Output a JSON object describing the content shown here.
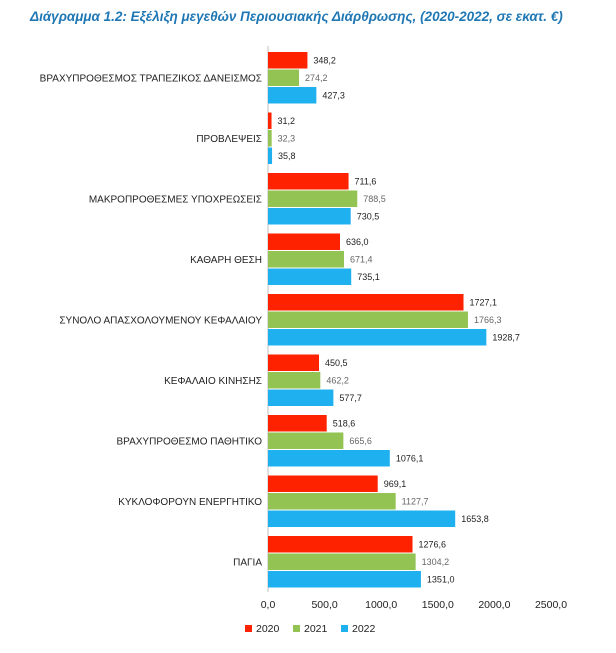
{
  "chart_data": {
    "type": "bar",
    "orientation": "horizontal",
    "title": "Διάγραμμα 1.2: Εξέλιξη μεγεθών Περιουσιακής Διάρθρωσης, (2020-2022, σε εκατ. €)",
    "categories": [
      "ΒΡΑΧΥΠΡΟΘΕΣΜΟΣ ΤΡΑΠΕΖΙΚΟΣ ΔΑΝΕΙΣΜΟΣ",
      "ΠΡΟΒΛΕΨΕΙΣ",
      "ΜΑΚΡΟΠΡΟΘΕΣΜΕΣ ΥΠΟΧΡΕΩΣΕΙΣ",
      "ΚΑΘΑΡΗ ΘΕΣΗ",
      "ΣΥΝΟΛΟ ΑΠΑΣΧΟΛΟΥΜΕΝΟΥ ΚΕΦΑΛΑΙΟΥ",
      "ΚΕΦΑΛΑΙΟ ΚΙΝΗΣΗΣ",
      "ΒΡΑΧΥΠΡΟΘΕΣΜΟ ΠΑΘΗΤΙΚΟ",
      "ΚΥΚΛΟΦΟΡΟΥΝ ΕΝΕΡΓΗΤΙΚΟ",
      "ΠΑΓΙΑ"
    ],
    "series": [
      {
        "name": "2020",
        "color": "#ff2200",
        "values": [
          348.2,
          31.2,
          711.6,
          636.0,
          1727.1,
          450.5,
          518.6,
          969.1,
          1276.6
        ],
        "labels": [
          "348,2",
          "31,2",
          "711,6",
          "636,0",
          "1727,1",
          "450,5",
          "518,6",
          "969,1",
          "1276,6"
        ]
      },
      {
        "name": "2021",
        "color": "#92c353",
        "values": [
          274.2,
          32.3,
          788.5,
          671.4,
          1766.3,
          462.2,
          665.6,
          1127.7,
          1304.2
        ],
        "labels": [
          "274,2",
          "32,3",
          "788,5",
          "671,4",
          "1766,3",
          "462,2",
          "665,6",
          "1127,7",
          "1304,2"
        ]
      },
      {
        "name": "2022",
        "color": "#1fb0f0",
        "values": [
          427.3,
          35.8,
          730.5,
          735.1,
          1928.7,
          577.7,
          1076.1,
          1653.8,
          1351.0
        ],
        "labels": [
          "427,3",
          "35,8",
          "730,5",
          "735,1",
          "1928,7",
          "577,7",
          "1076,1",
          "1653,8",
          "1351,0"
        ]
      }
    ],
    "xlim": [
      0,
      2500
    ],
    "xticks": [
      0,
      500,
      1000,
      1500,
      2000,
      2500
    ],
    "xtick_labels": [
      "0,0",
      "500,0",
      "1000,0",
      "1500,0",
      "2000,0",
      "2500,0"
    ],
    "grid": false,
    "legend": "bottom"
  }
}
